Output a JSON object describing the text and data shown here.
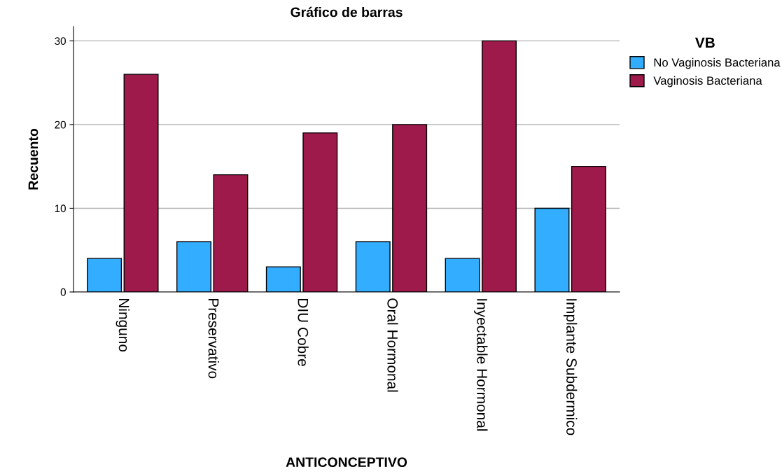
{
  "chart_data": {
    "type": "bar",
    "title": "Gráfico de barras",
    "xlabel": "ANTICONCEPTIVO",
    "ylabel": "Recuento",
    "legend_title": "VB",
    "categories": [
      "Ninguno",
      "Preservativo",
      "DIU Cobre",
      "Oral Hormonal",
      "Inyectable Hormonal",
      "Implante Subdermico"
    ],
    "series": [
      {
        "name": "No Vaginosis Bacteriana",
        "color": "#33adff",
        "values": [
          4,
          6,
          3,
          6,
          4,
          10
        ]
      },
      {
        "name": "Vaginosis Bacteriana",
        "color": "#9e1a4b",
        "values": [
          26,
          14,
          19,
          20,
          30,
          15
        ]
      }
    ],
    "ylim": [
      0,
      31.7
    ],
    "yticks": [
      0,
      10,
      20,
      30
    ],
    "grid": "y",
    "legend": "top right"
  }
}
